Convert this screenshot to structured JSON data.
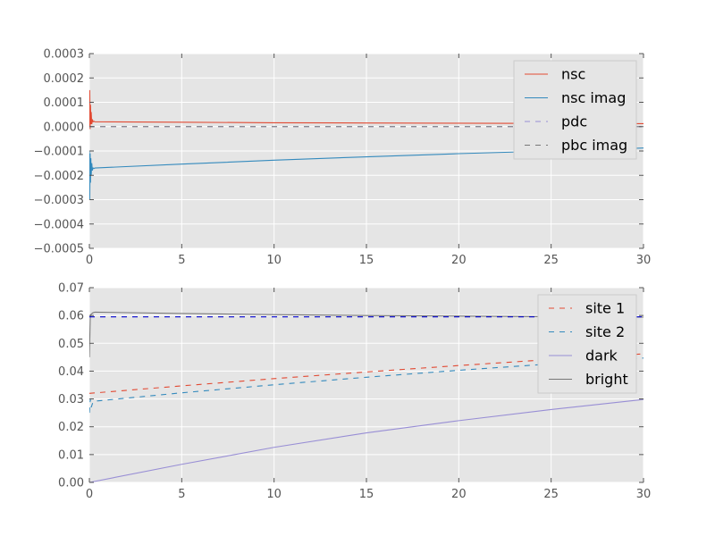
{
  "chart_data": [
    {
      "type": "line",
      "title": "",
      "xlabel": "",
      "ylabel": "",
      "xlim": [
        0,
        30
      ],
      "ylim": [
        -0.0005,
        0.0003
      ],
      "xticks": [
        0,
        5,
        10,
        15,
        20,
        25,
        30
      ],
      "xtick_labels": [
        "0",
        "5",
        "10",
        "15",
        "20",
        "25",
        "30"
      ],
      "yticks": [
        0.0003,
        0.0002,
        0.0001,
        0.0,
        -0.0001,
        -0.0002,
        -0.0003,
        -0.0004,
        -0.0005
      ],
      "ytick_labels": [
        "0.0003",
        "0.0002",
        "0.0001",
        "0.0000",
        "−0.0001",
        "−0.0002",
        "−0.0003",
        "−0.0004",
        "−0.0005"
      ],
      "grid": true,
      "legend_position": "top-right",
      "series": [
        {
          "name": "nsc",
          "color": "#e24a33",
          "dash": "solid",
          "x": [
            0,
            0.02,
            0.04,
            0.06,
            0.08,
            0.1,
            0.13,
            0.16,
            0.2,
            0.25,
            0.3,
            5,
            10,
            15,
            20,
            25,
            30
          ],
          "y": [
            0.0,
            0.00015,
            -1e-05,
            9e-05,
            1e-05,
            6e-05,
            1e-05,
            3e-05,
            2e-05,
            2.2e-05,
            2e-05,
            1.8e-05,
            1.6e-05,
            1.5e-05,
            1.4e-05,
            1.3e-05,
            1.2e-05
          ]
        },
        {
          "name": "nsc imag",
          "color": "#348abd",
          "dash": "solid",
          "x": [
            0,
            0.02,
            0.04,
            0.06,
            0.08,
            0.1,
            0.13,
            0.16,
            0.2,
            0.25,
            0.3,
            5,
            10,
            15,
            20,
            25,
            30
          ],
          "y": [
            -0.0001,
            -0.0003,
            -0.00011,
            -0.00023,
            -0.00013,
            -0.0002,
            -0.00015,
            -0.00018,
            -0.00017,
            -0.000172,
            -0.00017,
            -0.000154,
            -0.000138,
            -0.000124,
            -0.000111,
            -0.0001,
            -8.8e-05
          ]
        },
        {
          "name": "pdc",
          "color": "#988ed5",
          "dash": "dashed",
          "x": [
            0,
            30
          ],
          "y": [
            0.0,
            0.0
          ]
        },
        {
          "name": "pbc imag",
          "color": "#777777",
          "dash": "dashed",
          "x": [
            0,
            30
          ],
          "y": [
            0.0,
            0.0
          ]
        }
      ]
    },
    {
      "type": "line",
      "title": "",
      "xlabel": "",
      "ylabel": "",
      "xlim": [
        0,
        30
      ],
      "ylim": [
        0.0,
        0.07
      ],
      "xticks": [
        0,
        5,
        10,
        15,
        20,
        25,
        30
      ],
      "xtick_labels": [
        "0",
        "5",
        "10",
        "15",
        "20",
        "25",
        "30"
      ],
      "yticks": [
        0.07,
        0.06,
        0.05,
        0.04,
        0.03,
        0.02,
        0.01,
        0.0
      ],
      "ytick_labels": [
        "0.07",
        "0.06",
        "0.05",
        "0.04",
        "0.03",
        "0.02",
        "0.01",
        "0.00"
      ],
      "grid": true,
      "legend_position": "top-right",
      "series": [
        {
          "name": "site 1",
          "color": "#e24a33",
          "dash": "dashed",
          "x": [
            0,
            5,
            10,
            15,
            20,
            25,
            30
          ],
          "y": [
            0.032,
            0.0347,
            0.0373,
            0.0397,
            0.042,
            0.0442,
            0.0462
          ]
        },
        {
          "name": "site 2",
          "color": "#348abd",
          "dash": "dashed",
          "x": [
            0,
            0.05,
            0.1,
            0.2,
            0.3,
            5,
            10,
            15,
            20,
            25,
            30
          ],
          "y": [
            0.025,
            0.03,
            0.027,
            0.029,
            0.0292,
            0.0322,
            0.0351,
            0.0378,
            0.0403,
            0.0426,
            0.0447
          ]
        },
        {
          "name": "dark",
          "color": "#988ed5",
          "dash": "solid",
          "x": [
            0,
            5,
            10,
            15,
            20,
            25,
            30
          ],
          "y": [
            0.0,
            0.0065,
            0.0126,
            0.0178,
            0.0222,
            0.0262,
            0.0298
          ]
        },
        {
          "name": "bright",
          "color": "#777777",
          "dash": "solid",
          "x": [
            0,
            0.05,
            0.1,
            0.2,
            0.3,
            5,
            10,
            15,
            20,
            25,
            30
          ],
          "y": [
            0.045,
            0.06,
            0.0605,
            0.061,
            0.0612,
            0.0607,
            0.0603,
            0.06,
            0.0598,
            0.0596,
            0.0594
          ]
        },
        {
          "color": "#0000cc",
          "dash": "dashed",
          "x": [
            0,
            30
          ],
          "y": [
            0.0595,
            0.0595
          ]
        }
      ]
    }
  ]
}
